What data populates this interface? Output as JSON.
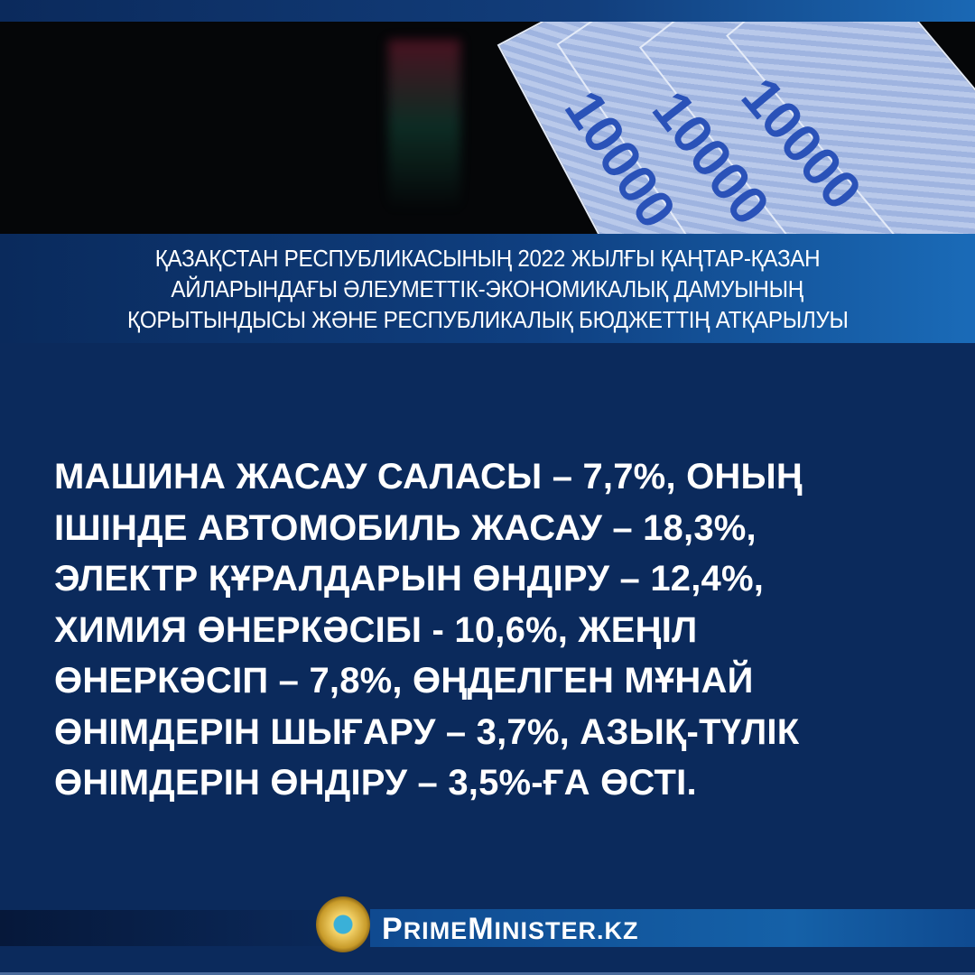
{
  "photo": {
    "banknote_label": "10000"
  },
  "title_lines": [
    "ҚАЗАҚСТАН РЕСПУБЛИКАСЫНЫҢ 2022 ЖЫЛҒЫ ҚАҢТАР-ҚАЗАН",
    "АЙЛАРЫНДАҒЫ ӘЛЕУМЕТТІК-ЭКОНОМИКАЛЫҚ ДАМУЫНЫҢ",
    "ҚОРЫТЫНДЫСЫ ЖӘНЕ РЕСПУБЛИКАЛЫҚ БЮДЖЕТТІҢ АТҚАРЫЛУЫ"
  ],
  "body_lines": [
    "МАШИНА ЖАСАУ САЛАСЫ – 7,7%, ОНЫҢ",
    "ІШІНДЕ АВТОМОБИЛЬ ЖАСАУ – 18,3%,",
    "ЭЛЕКТР ҚҰРАЛДАРЫН ӨНДІРУ – 12,4%,",
    "ХИМИЯ ӨНЕРКӘСІБІ - 10,6%, ЖЕҢІЛ",
    "ӨНЕРКӘСІП – 7,8%, ӨҢДЕЛГЕН МҰНАЙ",
    "ӨНІМДЕРІН ШЫҒАРУ – 3,7%, АЗЫҚ-ТҮЛІК",
    "ӨНІМДЕРІН ӨНДІРУ – 3,5%-ҒА ӨСТІ."
  ],
  "footer": {
    "site_p": "P",
    "site_rime": "RIME",
    "site_m": "M",
    "site_inister": "INISTER.KZ",
    "emblem_icon": "kazakhstan-state-emblem"
  },
  "colors": {
    "navy": "#0b2a5c",
    "accent_blue": "#1561a8",
    "text": "#ffffff"
  }
}
